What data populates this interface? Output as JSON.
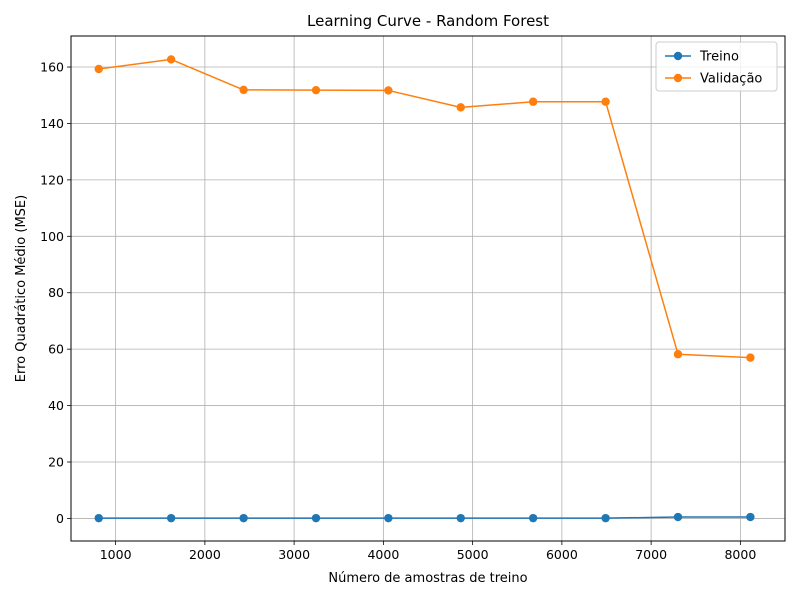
{
  "chart_data": {
    "type": "line",
    "title": "Learning Curve - Random Forest",
    "xlabel": "Número de amostras de treino",
    "ylabel": "Erro Quadrático Médio (MSE)",
    "x": [
      811,
      1622,
      2434,
      3245,
      4056,
      4867,
      5678,
      6490,
      7301,
      8112
    ],
    "xlim": [
      500,
      8500
    ],
    "ylim": [
      -8,
      171
    ],
    "xticks": [
      1000,
      2000,
      3000,
      4000,
      5000,
      6000,
      7000,
      8000
    ],
    "yticks": [
      0,
      20,
      40,
      60,
      80,
      100,
      120,
      140,
      160
    ],
    "grid": true,
    "legend_position": "top-right",
    "series": [
      {
        "name": "Treino",
        "color": "#1f77b4",
        "values": [
          0.1,
          0.1,
          0.1,
          0.1,
          0.1,
          0.1,
          0.1,
          0.1,
          0.5,
          0.5
        ]
      },
      {
        "name": "Validação",
        "color": "#ff7f0e",
        "values": [
          159.3,
          162.7,
          151.9,
          151.8,
          151.7,
          145.7,
          147.7,
          147.7,
          58.2,
          57.0
        ]
      }
    ]
  }
}
